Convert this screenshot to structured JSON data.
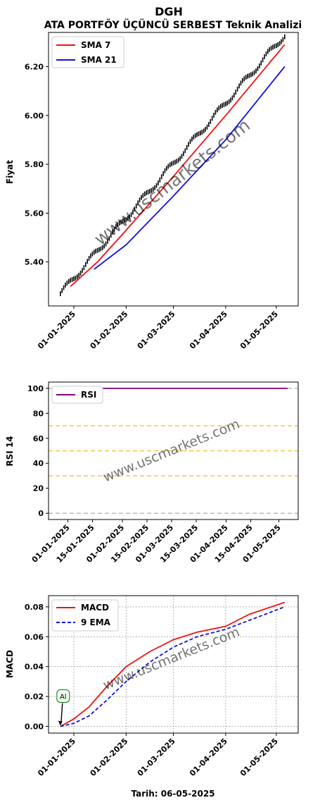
{
  "figure": {
    "ticker": "DGH",
    "title": "ATA PORTFÖY ÜÇÜNCÜ SERBEST Teknik Analizi",
    "watermark": "www.uscmarkets.com",
    "date_label": "Tarih: 06-05-2025"
  },
  "chart_data": [
    {
      "type": "line",
      "name": "price",
      "ylabel": "Fiyat",
      "ylim": [
        5.22,
        6.34
      ],
      "yticks": [
        5.4,
        5.6,
        5.8,
        6.0,
        6.2
      ],
      "ytick_labels": [
        "5.40",
        "5.60",
        "5.80",
        "6.00",
        "6.20"
      ],
      "xlim": [
        "2024-12-17",
        "2025-05-14"
      ],
      "xticks": [
        "2025-01-01",
        "2025-02-01",
        "2025-03-01",
        "2025-04-01",
        "2025-05-01"
      ],
      "xtick_labels": [
        "01-01-2025",
        "01-02-2025",
        "01-03-2025",
        "01-04-2025",
        "01-05-2025"
      ],
      "price_start": {
        "date": "2024-12-24",
        "value": 5.27
      },
      "price_end": {
        "date": "2025-05-06",
        "value": 6.33
      },
      "series": [
        {
          "name": "SMA 7",
          "color": "#ee1111",
          "points": [
            [
              "2024-12-30",
              5.3
            ],
            [
              "2025-01-15",
              5.4
            ],
            [
              "2025-02-01",
              5.53
            ],
            [
              "2025-03-01",
              5.75
            ],
            [
              "2025-04-01",
              6.0
            ],
            [
              "2025-05-06",
              6.29
            ]
          ]
        },
        {
          "name": "SMA 21",
          "color": "#1111dd",
          "points": [
            [
              "2025-01-13",
              5.37
            ],
            [
              "2025-02-01",
              5.47
            ],
            [
              "2025-03-01",
              5.67
            ],
            [
              "2025-04-01",
              5.9
            ],
            [
              "2025-05-06",
              6.2
            ]
          ]
        }
      ],
      "legend": "top-left",
      "grid": false
    },
    {
      "type": "line",
      "name": "rsi",
      "ylabel": "RSI 14",
      "ylim": [
        -5,
        105
      ],
      "yticks": [
        0,
        20,
        40,
        60,
        80,
        100
      ],
      "ytick_labels": [
        "0",
        "20",
        "40",
        "60",
        "80",
        "100"
      ],
      "xlim": [
        "2024-12-21",
        "2025-05-12"
      ],
      "xticks": [
        "2025-01-01",
        "2025-01-15",
        "2025-02-01",
        "2025-02-15",
        "2025-03-01",
        "2025-03-15",
        "2025-04-01",
        "2025-04-15",
        "2025-05-01"
      ],
      "xtick_labels": [
        "01-01-2025",
        "15-01-2025",
        "01-02-2025",
        "15-02-2025",
        "01-03-2025",
        "15-03-2025",
        "01-04-2025",
        "15-04-2025",
        "01-05-2025"
      ],
      "reference_lines": [
        {
          "value": 0,
          "color": "#bbbbbb"
        },
        {
          "value": 30,
          "color": "#f5c542"
        },
        {
          "value": 50,
          "color": "#f5c542"
        },
        {
          "value": 70,
          "color": "#f5c542"
        },
        {
          "value": 100,
          "color": "#bbbbbb"
        }
      ],
      "series": [
        {
          "name": "RSI",
          "color": "#800080",
          "points": [
            [
              "2024-12-26",
              100
            ],
            [
              "2025-05-06",
              100
            ]
          ]
        }
      ],
      "legend": "top-left",
      "grid": false
    },
    {
      "type": "line",
      "name": "macd",
      "ylabel": "MACD",
      "ylim": [
        -0.0045,
        0.0875
      ],
      "yticks": [
        0.0,
        0.02,
        0.04,
        0.06,
        0.08
      ],
      "ytick_labels": [
        "0.00",
        "0.02",
        "0.04",
        "0.06",
        "0.08"
      ],
      "xlim": [
        "2024-12-17",
        "2025-05-14"
      ],
      "xticks": [
        "2025-01-01",
        "2025-02-01",
        "2025-03-01",
        "2025-04-01",
        "2025-05-01"
      ],
      "xtick_labels": [
        "01-01-2025",
        "01-02-2025",
        "01-03-2025",
        "01-04-2025",
        "01-05-2025"
      ],
      "series": [
        {
          "name": "MACD",
          "color": "#ee1111",
          "dash": "solid",
          "points": [
            [
              "2024-12-24",
              0.0
            ],
            [
              "2025-01-01",
              0.005
            ],
            [
              "2025-01-10",
              0.013
            ],
            [
              "2025-01-20",
              0.026
            ],
            [
              "2025-02-01",
              0.04
            ],
            [
              "2025-02-15",
              0.05
            ],
            [
              "2025-03-01",
              0.058
            ],
            [
              "2025-03-15",
              0.063
            ],
            [
              "2025-04-01",
              0.067
            ],
            [
              "2025-04-15",
              0.075
            ],
            [
              "2025-05-06",
              0.083
            ]
          ]
        },
        {
          "name": "9 EMA",
          "color": "#1111dd",
          "dash": "dashed",
          "points": [
            [
              "2024-12-24",
              0.0
            ],
            [
              "2025-01-01",
              0.002
            ],
            [
              "2025-01-10",
              0.007
            ],
            [
              "2025-01-20",
              0.017
            ],
            [
              "2025-02-01",
              0.03
            ],
            [
              "2025-02-15",
              0.043
            ],
            [
              "2025-03-01",
              0.053
            ],
            [
              "2025-03-15",
              0.06
            ],
            [
              "2025-04-01",
              0.065
            ],
            [
              "2025-04-15",
              0.071
            ],
            [
              "2025-05-06",
              0.08
            ]
          ]
        }
      ],
      "annotation": {
        "text": "Al",
        "date": "2024-12-24",
        "value": 0.0
      },
      "legend": "top-left",
      "grid": true
    }
  ]
}
